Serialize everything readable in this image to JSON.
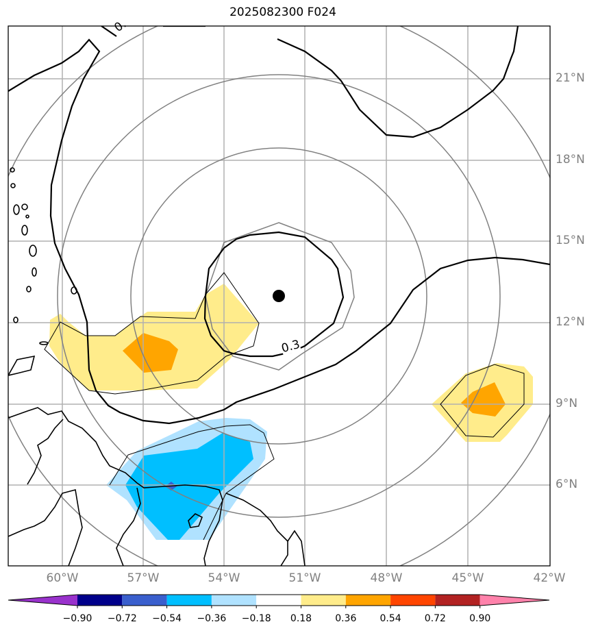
{
  "title": "2025082300 F024",
  "lat_labels": [
    "21°N",
    "18°N",
    "15°N",
    "12°N",
    "9°N",
    "6°N"
  ],
  "lon_labels": [
    "60°W",
    "57°W",
    "54°W",
    "51°W",
    "48°W",
    "45°W",
    "42°W"
  ],
  "contour_labels": [
    "0.3",
    "0."
  ],
  "colorbar": {
    "ticks": [
      "−0.90",
      "−0.72",
      "−0.54",
      "−0.36",
      "−0.18",
      "0.18",
      "0.36",
      "0.54",
      "0.72",
      "0.90"
    ],
    "colors": [
      "#9932cc",
      "#00008b",
      "#3a5fcd",
      "#00bfff",
      "#b0e2ff",
      "#ffffff",
      "#ffec8b",
      "#ffa500",
      "#ff4500",
      "#b22222",
      "#ff82ab"
    ]
  }
}
